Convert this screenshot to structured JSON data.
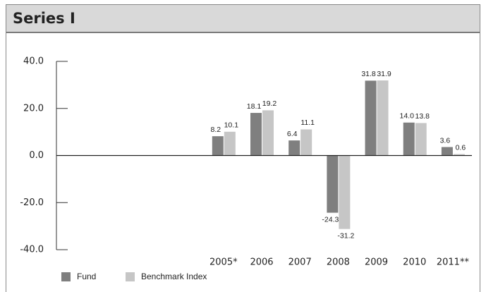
{
  "chart_data": {
    "type": "bar",
    "title": "Series I",
    "categories": [
      null,
      null,
      null,
      null,
      "2005*",
      "2006",
      "2007",
      "2008",
      "2009",
      "2010",
      "2011**"
    ],
    "series": [
      {
        "name": "Fund",
        "color": "#7f7f7f",
        "values": [
          null,
          null,
          null,
          null,
          8.2,
          18.1,
          6.4,
          -24.3,
          31.8,
          14.0,
          3.6
        ],
        "value_labels": [
          null,
          null,
          null,
          null,
          "8.2",
          "18.1",
          "6.4",
          "-24.3",
          "31.8",
          "14.0",
          "3.6"
        ]
      },
      {
        "name": "Benchmark Index",
        "color": "#c6c6c6",
        "values": [
          null,
          null,
          null,
          null,
          10.1,
          19.2,
          11.1,
          -31.2,
          31.9,
          13.8,
          0.6
        ],
        "value_labels": [
          null,
          null,
          null,
          null,
          "10.1",
          "19.2",
          "11.1",
          "-31.2",
          "31.9",
          "13.8",
          "0.6"
        ]
      }
    ],
    "ylim": [
      -40,
      40
    ],
    "yticks": [
      {
        "value": -40,
        "label": "-40.0"
      },
      {
        "value": -20,
        "label": "-20.0"
      },
      {
        "value": 0,
        "label": "0.0"
      },
      {
        "value": 20,
        "label": "20.0"
      },
      {
        "value": 40,
        "label": "40.0"
      }
    ]
  }
}
